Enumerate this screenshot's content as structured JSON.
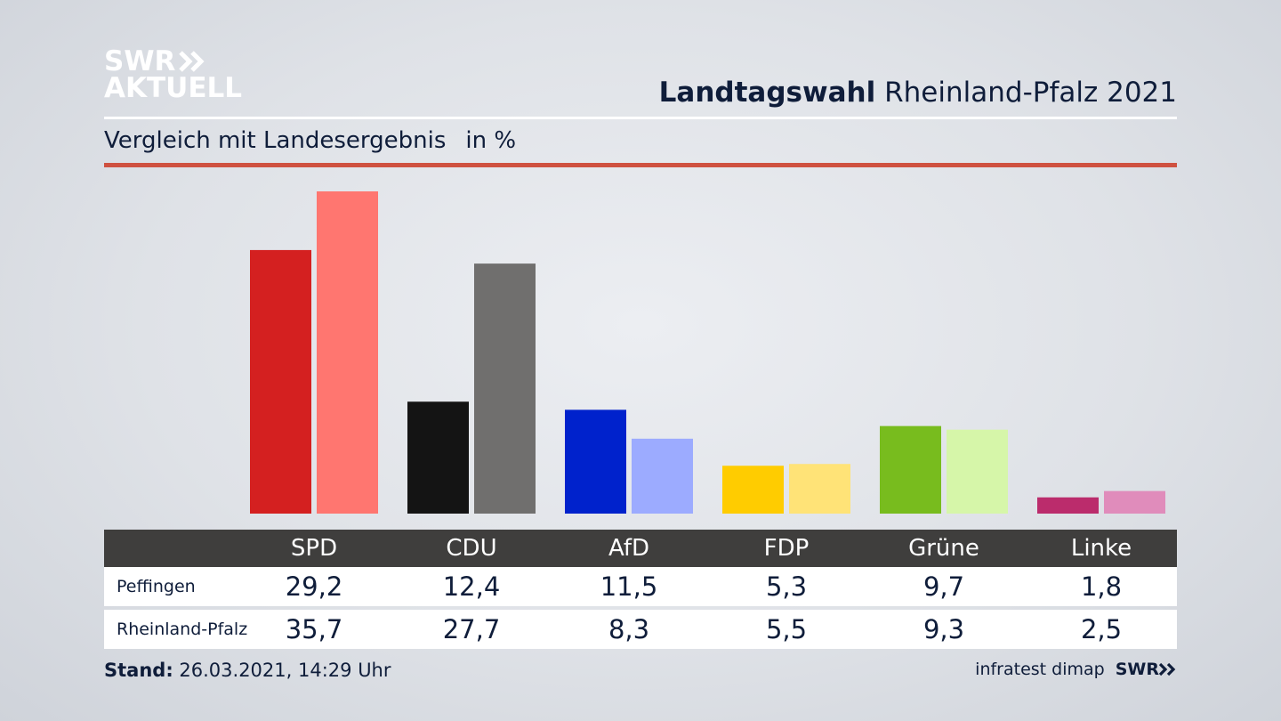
{
  "brand": {
    "line1": "SWR",
    "line2": "AKTUELL",
    "footer_brand": "SWR"
  },
  "header": {
    "title_bold": "Landtagswahl",
    "title_rest": "Rheinland-Pfalz 2021"
  },
  "subheader": {
    "text": "Vergleich mit Landesergebnis",
    "unit": "in %"
  },
  "footer": {
    "stand_label": "Stand:",
    "stand_value": "26.03.2021, 14:29 Uhr",
    "source": "infratest dimap"
  },
  "colors": {
    "accent_rule": "#cf5140",
    "table_header": "#3f3e3d"
  },
  "chart_data": {
    "type": "bar",
    "categories": [
      "SPD",
      "CDU",
      "AfD",
      "FDP",
      "Grüne",
      "Linke"
    ],
    "series": [
      {
        "name": "Peffingen",
        "values": [
          29.2,
          12.4,
          11.5,
          5.3,
          9.7,
          1.8
        ],
        "colors": [
          "#d42020",
          "#141414",
          "#0022cc",
          "#ffcc00",
          "#78bc1e",
          "#bb2c6c"
        ]
      },
      {
        "name": "Rheinland-Pfalz",
        "values": [
          35.7,
          27.7,
          8.3,
          5.5,
          9.3,
          2.5
        ],
        "colors": [
          "#ff7670",
          "#706f6e",
          "#9cabff",
          "#ffe377",
          "#d6f6a9",
          "#e08cbb"
        ]
      }
    ],
    "display_values": [
      [
        "29,2",
        "12,4",
        "11,5",
        "5,3",
        "9,7",
        "1,8"
      ],
      [
        "35,7",
        "27,7",
        "8,3",
        "5,5",
        "9,3",
        "2,5"
      ]
    ],
    "ylim": [
      0,
      35.7
    ],
    "grid": false
  }
}
